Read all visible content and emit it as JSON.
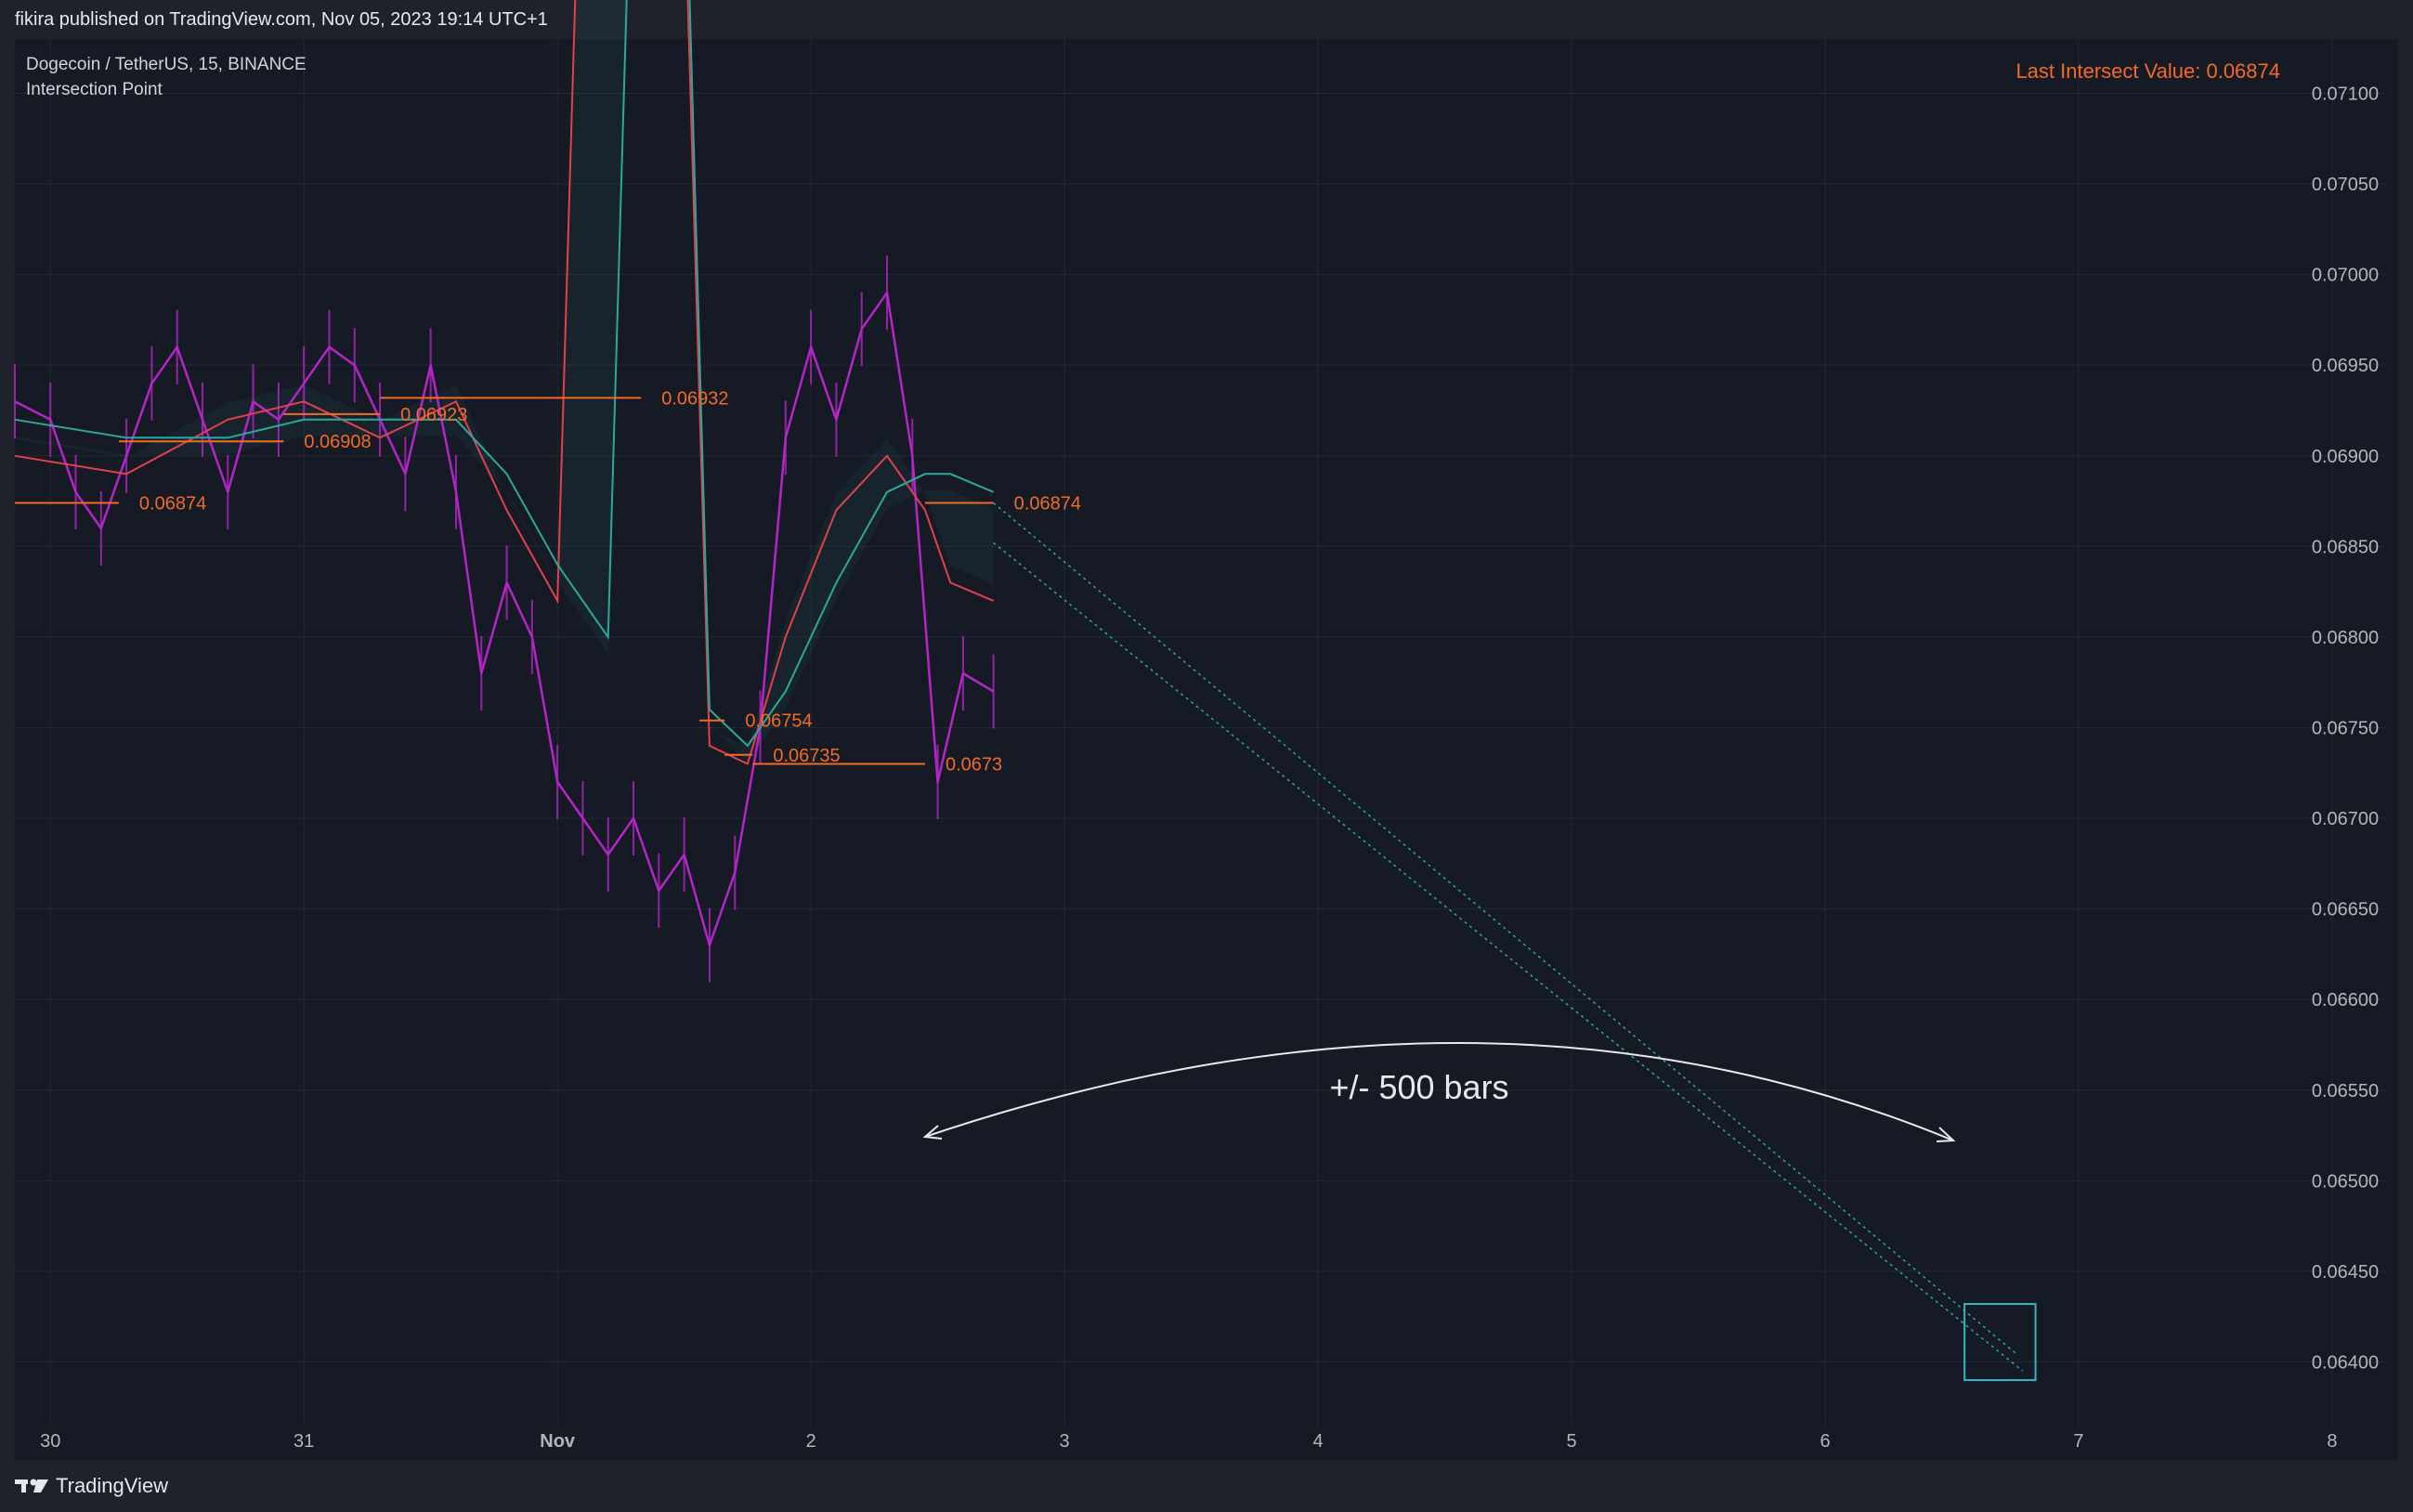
{
  "header": {
    "published_text": "fikira published on TradingView.com, Nov 05, 2023 19:14 UTC+1"
  },
  "legend": {
    "symbol": "Dogecoin / TetherUS, 15, BINANCE",
    "indicator": "Intersection Point"
  },
  "last_intersect": {
    "text": "Last Intersect Value: 0.06874"
  },
  "annotation": {
    "text": "+/- 500 bars"
  },
  "footer": {
    "brand": "TradingView"
  },
  "colors": {
    "background": "#161a25",
    "candle": "#b425c8",
    "accent_orange": "#f36b23",
    "teal": "#2aa99b",
    "red": "#e0414d",
    "grid": "#232835",
    "box": "#35b5c4"
  },
  "chart_data": {
    "type": "line",
    "x_tick_labels": [
      "30",
      "31",
      "Nov",
      "2",
      "3",
      "4",
      "5",
      "6",
      "7",
      "8"
    ],
    "y_tick_labels": [
      "0.07100",
      "0.07050",
      "0.07000",
      "0.06950",
      "0.06900",
      "0.06850",
      "0.06800",
      "0.06750",
      "0.06700",
      "0.06650",
      "0.06600",
      "0.06550",
      "0.06500",
      "0.06450",
      "0.06400"
    ],
    "ylim": [
      0.0637,
      0.0713
    ],
    "xlim": [
      -0.14,
      8.85
    ],
    "intersection_levels": [
      {
        "label": "0.06874",
        "value": 0.06874,
        "x_start": -0.14,
        "x_end": 0.27
      },
      {
        "label": "0.06908",
        "value": 0.06908,
        "x_start": 0.27,
        "x_end": 0.92
      },
      {
        "label": "0.06923",
        "value": 0.06923,
        "x_start": 0.92,
        "x_end": 1.3
      },
      {
        "label": "0.06932",
        "value": 0.06932,
        "x_start": 1.3,
        "x_end": 2.33
      },
      {
        "label": "0.06754",
        "value": 0.06754,
        "x_start": 2.56,
        "x_end": 2.66
      },
      {
        "label": "0.06735",
        "value": 0.06735,
        "x_start": 2.66,
        "x_end": 2.77
      },
      {
        "label": "0.0673",
        "value": 0.0673,
        "x_start": 2.77,
        "x_end": 3.45
      },
      {
        "label": "0.06874",
        "value": 0.06874,
        "x_start": 3.45,
        "x_end": 3.72
      }
    ],
    "price_series": {
      "name": "",
      "x": [
        -0.14,
        0.0,
        0.1,
        0.2,
        0.3,
        0.4,
        0.5,
        0.6,
        0.7,
        0.8,
        0.9,
        1.0,
        1.1,
        1.2,
        1.3,
        1.4,
        1.5,
        1.6,
        1.7,
        1.8,
        1.9,
        2.0,
        2.1,
        2.2,
        2.3,
        2.4,
        2.5,
        2.6,
        2.7,
        2.8,
        2.9,
        3.0,
        3.1,
        3.2,
        3.3,
        3.4,
        3.5,
        3.6,
        3.72
      ],
      "y": [
        0.0693,
        0.0692,
        0.0688,
        0.0686,
        0.069,
        0.0694,
        0.0696,
        0.0692,
        0.0688,
        0.0693,
        0.0692,
        0.0694,
        0.0696,
        0.0695,
        0.0692,
        0.0689,
        0.0695,
        0.0688,
        0.0678,
        0.0683,
        0.068,
        0.0672,
        0.067,
        0.0668,
        0.067,
        0.0666,
        0.0668,
        0.0663,
        0.0667,
        0.0675,
        0.0691,
        0.0696,
        0.0692,
        0.0697,
        0.0699,
        0.069,
        0.0672,
        0.0678,
        0.0677
      ]
    },
    "fast_ma": {
      "name": "",
      "x": [
        -0.14,
        0.3,
        0.7,
        1.0,
        1.3,
        1.6,
        1.8,
        2.0,
        2.2,
        2.4,
        2.6,
        2.75,
        2.9,
        3.1,
        3.3,
        3.45,
        3.55,
        3.72
      ],
      "y": [
        0.069,
        0.0689,
        0.0692,
        0.0693,
        0.0691,
        0.0693,
        0.0687,
        0.0682,
        0.0777,
        0.077,
        0.0674,
        0.0673,
        0.068,
        0.0687,
        0.069,
        0.0687,
        0.0683,
        0.0682
      ]
    },
    "slow_ma": {
      "name": "",
      "x": [
        -0.14,
        0.3,
        0.7,
        1.0,
        1.3,
        1.6,
        1.8,
        2.0,
        2.2,
        2.4,
        2.6,
        2.75,
        2.9,
        3.1,
        3.3,
        3.45,
        3.55,
        3.72
      ],
      "y": [
        0.0692,
        0.0691,
        0.0691,
        0.0692,
        0.0692,
        0.0692,
        0.0689,
        0.0684,
        0.068,
        0.0776,
        0.0676,
        0.0674,
        0.0677,
        0.0683,
        0.0688,
        0.0689,
        0.0689,
        0.0688
      ]
    },
    "projection_lines": [
      {
        "x": [
          3.72,
          7.75
        ],
        "y": [
          0.06874,
          0.06405
        ]
      },
      {
        "x": [
          3.72,
          7.78
        ],
        "y": [
          0.06852,
          0.06395
        ]
      }
    ],
    "projection_box": {
      "x": [
        7.55,
        7.83
      ],
      "y": [
        0.0639,
        0.06432
      ]
    }
  }
}
